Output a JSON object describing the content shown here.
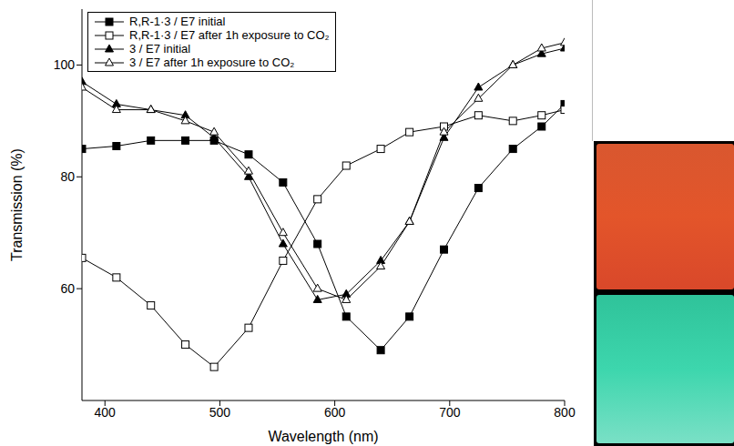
{
  "chart_data": {
    "type": "line",
    "x_label": "Wavelength (nm)",
    "y_label": "Transmission (%)",
    "x": [
      380,
      410,
      440,
      470,
      495,
      525,
      555,
      585,
      610,
      640,
      665,
      695,
      725,
      755,
      780,
      800
    ],
    "xlim": [
      380,
      800
    ],
    "xticks": [
      400,
      500,
      600,
      700,
      800
    ],
    "ylim": [
      40,
      110
    ],
    "yticks": [
      60,
      80,
      100
    ],
    "grid": false,
    "legend": "upper left",
    "series": [
      {
        "name": "R,R-1·3 / E7 initial",
        "color": "#000000",
        "marker": "square",
        "values": [
          85,
          85.5,
          86.5,
          86.5,
          86.5,
          84,
          79,
          68,
          55,
          49,
          55,
          67,
          78,
          85,
          89,
          93
        ]
      },
      {
        "name": "R,R-1·3 / E7 after 1h exposure to CO₂",
        "color": "#000000",
        "marker": "open_square",
        "values": [
          65.5,
          62,
          57,
          50,
          46,
          53,
          65,
          76,
          82,
          85,
          88,
          89,
          91,
          90,
          91,
          92
        ]
      },
      {
        "name": "3 / E7 initial",
        "color": "#000000",
        "marker": "triangle",
        "values": [
          97,
          93,
          92,
          91,
          87,
          80,
          68,
          58,
          59,
          65,
          72,
          87,
          96,
          100,
          102,
          103
        ]
      },
      {
        "name": "3 / E7 after 1h exposure to CO₂",
        "color": "#000000",
        "marker": "open_triangle",
        "values": [
          96,
          92,
          92,
          90,
          88,
          81,
          70,
          60,
          58,
          64,
          72,
          88,
          94,
          100,
          103,
          104
        ]
      }
    ]
  }
}
